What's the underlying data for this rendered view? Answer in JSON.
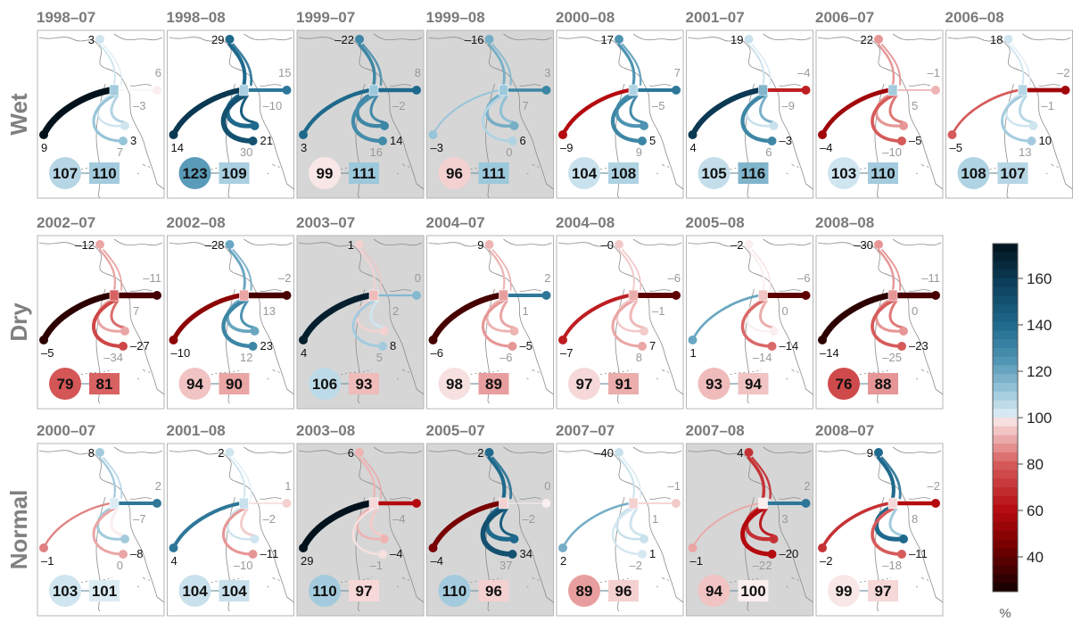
{
  "chart_data": {
    "type": "small-multiple flow maps",
    "rows": [
      "Wet",
      "Dry",
      "Normal"
    ],
    "unit": "%",
    "colorbar": {
      "ticks": [
        40,
        60,
        80,
        100,
        120,
        140,
        160
      ],
      "range": [
        25,
        175
      ]
    },
    "panels": [
      {
        "row": "Wet",
        "title": "1998–07",
        "shaded": false,
        "top": "3",
        "right": "6",
        "left": "9",
        "mid": "–3",
        "bottom": "3",
        "gray1": "7",
        "gray2": "",
        "circle": 107,
        "square": 110,
        "leftFlow": 175,
        "rightFlow": 100,
        "upperFlow": 103,
        "lowerFlow": 112
      },
      {
        "row": "Wet",
        "title": "1998–08",
        "shaded": false,
        "top": "29",
        "right": "15",
        "left": "14",
        "mid": "–10",
        "bottom": "21",
        "gray1": "30",
        "gray2": "",
        "circle": 123,
        "square": 109,
        "leftFlow": 160,
        "rightFlow": 135,
        "upperFlow": 140,
        "lowerFlow": 150
      },
      {
        "row": "Wet",
        "title": "1999–07",
        "shaded": true,
        "top": "–22",
        "right": "8",
        "left": "3",
        "mid": "–2",
        "bottom": "14",
        "gray1": "16",
        "gray2": "",
        "circle": 99,
        "square": 111,
        "leftFlow": 140,
        "rightFlow": 140,
        "upperFlow": 130,
        "lowerFlow": 128
      },
      {
        "row": "Wet",
        "title": "1999–08",
        "shaded": true,
        "top": "–16",
        "right": "3",
        "left": "–3",
        "mid": "7",
        "bottom": "6",
        "gray1": "0",
        "gray2": "",
        "circle": 96,
        "square": 111,
        "leftFlow": 112,
        "rightFlow": 130,
        "upperFlow": 118,
        "lowerFlow": 108
      },
      {
        "row": "Wet",
        "title": "2000–08",
        "shaded": false,
        "top": "17",
        "right": "7",
        "left": "–9",
        "mid": "–5",
        "bottom": "5",
        "gray1": "9",
        "gray2": "",
        "circle": 104,
        "square": 108,
        "leftFlow": 60,
        "rightFlow": 135,
        "upperFlow": 125,
        "lowerFlow": 130
      },
      {
        "row": "Wet",
        "title": "2001–07",
        "shaded": false,
        "top": "19",
        "right": "–4",
        "left": "4",
        "mid": "–9",
        "bottom": "–3",
        "gray1": "6",
        "gray2": "",
        "circle": 105,
        "square": 116,
        "leftFlow": 160,
        "rightFlow": 65,
        "upperFlow": 104,
        "lowerFlow": 130
      },
      {
        "row": "Wet",
        "title": "2006–07",
        "shaded": false,
        "top": "22",
        "right": "–1",
        "left": "–4",
        "mid": "5",
        "bottom": "–5",
        "gray1": "–10",
        "gray2": "",
        "circle": 103,
        "square": 110,
        "leftFlow": 55,
        "rightFlow": 92,
        "upperFlow": 88,
        "lowerFlow": 80
      },
      {
        "row": "Wet",
        "title": "2006–08",
        "shaded": false,
        "top": "18",
        "right": "–2",
        "left": "–5",
        "mid": "–1",
        "bottom": "10",
        "gray1": "13",
        "gray2": "",
        "circle": 108,
        "square": 107,
        "leftFlow": 80,
        "rightFlow": 55,
        "upperFlow": 103,
        "lowerFlow": 110
      },
      {
        "row": "Dry",
        "title": "2002–07",
        "shaded": false,
        "top": "–12",
        "right": "–11",
        "left": "–5",
        "mid": "7",
        "bottom": "–27",
        "gray1": "–34",
        "gray2": "",
        "circle": 79,
        "square": 81,
        "leftFlow": 30,
        "rightFlow": 35,
        "upperFlow": 90,
        "lowerFlow": 75
      },
      {
        "row": "Dry",
        "title": "2002–08",
        "shaded": false,
        "top": "–28",
        "right": "–2",
        "left": "–10",
        "mid": "13",
        "bottom": "23",
        "gray1": "12",
        "gray2": "",
        "circle": 94,
        "square": 90,
        "leftFlow": 50,
        "rightFlow": 35,
        "upperFlow": 120,
        "lowerFlow": 130
      },
      {
        "row": "Dry",
        "title": "2003–07",
        "shaded": true,
        "top": "1",
        "right": "0",
        "left": "4",
        "mid": "2",
        "bottom": "8",
        "gray1": "5",
        "gray2": "",
        "circle": 106,
        "square": 93,
        "leftFlow": 170,
        "rightFlow": 115,
        "upperFlow": 96,
        "lowerFlow": 110
      },
      {
        "row": "Dry",
        "title": "2004–07",
        "shaded": false,
        "top": "9",
        "right": "2",
        "left": "–6",
        "mid": "1",
        "bottom": "–5",
        "gray1": "–6",
        "gray2": "",
        "circle": 98,
        "square": 89,
        "leftFlow": 35,
        "rightFlow": 135,
        "upperFlow": 92,
        "lowerFlow": 88
      },
      {
        "row": "Dry",
        "title": "2004–08",
        "shaded": false,
        "top": "–0",
        "right": "–6",
        "left": "–7",
        "mid": "–1",
        "bottom": "7",
        "gray1": "8",
        "gray2": "",
        "circle": 97,
        "square": 91,
        "leftFlow": 65,
        "rightFlow": 40,
        "upperFlow": 95,
        "lowerFlow": 90
      },
      {
        "row": "Dry",
        "title": "2005–08",
        "shaded": false,
        "top": "–2",
        "right": "–6",
        "left": "1",
        "mid": "0",
        "bottom": "–14",
        "gray1": "–14",
        "gray2": "",
        "circle": 93,
        "square": 94,
        "leftFlow": 120,
        "rightFlow": 40,
        "upperFlow": 100,
        "lowerFlow": 82
      },
      {
        "row": "Dry",
        "title": "2008–08",
        "shaded": false,
        "top": "–30",
        "right": "–11",
        "left": "–14",
        "mid": "0",
        "bottom": "–23",
        "gray1": "–25",
        "gray2": "",
        "circle": 76,
        "square": 88,
        "leftFlow": 30,
        "rightFlow": 35,
        "upperFlow": 88,
        "lowerFlow": 80
      },
      {
        "row": "Normal",
        "title": "2000–07",
        "shaded": false,
        "top": "8",
        "right": "2",
        "left": "–1",
        "mid": "–7",
        "bottom": "–8",
        "gray1": "0",
        "gray2": "",
        "circle": 103,
        "square": 101,
        "leftFlow": 85,
        "rightFlow": 135,
        "upperFlow": 110,
        "lowerFlow": 90
      },
      {
        "row": "Normal",
        "title": "2001–08",
        "shaded": false,
        "top": "2",
        "right": "1",
        "left": "4",
        "mid": "–2",
        "bottom": "–11",
        "gray1": "–10",
        "gray2": "",
        "circle": 104,
        "square": 104,
        "leftFlow": 135,
        "rightFlow": 96,
        "upperFlow": 103,
        "lowerFlow": 88
      },
      {
        "row": "Normal",
        "title": "2003–08",
        "shaded": true,
        "top": "6",
        "right": "",
        "left": "29",
        "mid": "–4",
        "bottom": "–4",
        "gray1": "–1",
        "gray2": "",
        "circle": 110,
        "square": 97,
        "leftFlow": 175,
        "rightFlow": 60,
        "upperFlow": 92,
        "lowerFlow": 98
      },
      {
        "row": "Normal",
        "title": "2005–07",
        "shaded": true,
        "top": "2",
        "right": "0",
        "left": "–4",
        "mid": "–2",
        "bottom": "34",
        "gray1": "37",
        "gray2": "",
        "circle": 110,
        "square": 96,
        "leftFlow": 45,
        "rightFlow": 100,
        "upperFlow": 140,
        "lowerFlow": 150
      },
      {
        "row": "Normal",
        "title": "2007–07",
        "shaded": false,
        "top": "–40",
        "right": "–1",
        "left": "2",
        "mid": "1",
        "bottom": "1",
        "gray1": "–2",
        "gray2": "",
        "circle": 89,
        "square": 96,
        "leftFlow": 118,
        "rightFlow": 95,
        "upperFlow": 104,
        "lowerFlow": 102
      },
      {
        "row": "Normal",
        "title": "2007–08",
        "shaded": true,
        "top": "4",
        "right": "2",
        "left": "–1",
        "mid": "3",
        "bottom": "–20",
        "gray1": "–22",
        "gray2": "",
        "circle": 94,
        "square": 100,
        "leftFlow": 90,
        "rightFlow": 135,
        "upperFlow": 70,
        "lowerFlow": 60
      },
      {
        "row": "Normal",
        "title": "2008–07",
        "shaded": false,
        "top": "9",
        "right": "–2",
        "left": "–2",
        "mid": "8",
        "bottom": "–11",
        "gray1": "–18",
        "gray2": "",
        "circle": 99,
        "square": 97,
        "leftFlow": 70,
        "rightFlow": 60,
        "upperFlow": 140,
        "lowerFlow": 80
      }
    ]
  }
}
